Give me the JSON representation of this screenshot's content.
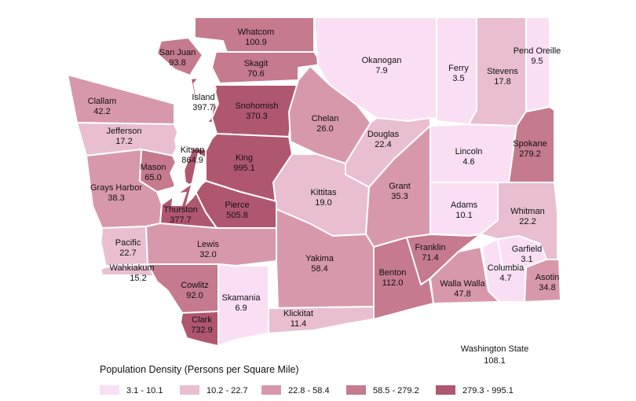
{
  "colors": {
    "c1": "#fadff4",
    "c2": "#e9bed1",
    "c3": "#d898ab",
    "c4": "#c57a8d",
    "c5": "#b05770",
    "border": "#ffffff"
  },
  "counties": {
    "whatcom": {
      "name": "Whatcom",
      "density": "100.9",
      "class": "c4"
    },
    "sanjuan": {
      "name": "San Juan",
      "density": "93.8",
      "class": "c4"
    },
    "skagit": {
      "name": "Skagit",
      "density": "70.6",
      "class": "c4"
    },
    "okanogan": {
      "name": "Okanogan",
      "density": "7.9",
      "class": "c1"
    },
    "ferry": {
      "name": "Ferry",
      "density": "3.5",
      "class": "c1"
    },
    "stevens": {
      "name": "Stevens",
      "density": "17.8",
      "class": "c2"
    },
    "pendoreille": {
      "name": "Pend Oreille",
      "density": "9.5",
      "class": "c1"
    },
    "clallam": {
      "name": "Clallam",
      "density": "42.2",
      "class": "c3"
    },
    "island": {
      "name": "Island",
      "density": "397.7",
      "class": "c5"
    },
    "snohomish": {
      "name": "Snohomish",
      "density": "370.3",
      "class": "c5"
    },
    "chelan": {
      "name": "Chelan",
      "density": "26.0",
      "class": "c3"
    },
    "jefferson": {
      "name": "Jefferson",
      "density": "17.2",
      "class": "c2"
    },
    "douglas": {
      "name": "Douglas",
      "density": "22.4",
      "class": "c2"
    },
    "kitsap": {
      "name": "Kitsap",
      "density": "864.9",
      "class": "c5"
    },
    "lincoln": {
      "name": "Lincoln",
      "density": "4.6",
      "class": "c1"
    },
    "spokane": {
      "name": "Spokane",
      "density": "279.2",
      "class": "c4"
    },
    "mason": {
      "name": "Mason",
      "density": "65.0",
      "class": "c4"
    },
    "king": {
      "name": "King",
      "density": "995.1",
      "class": "c5"
    },
    "graysharbor": {
      "name": "Grays Harbor",
      "density": "38.3",
      "class": "c3"
    },
    "kittitas": {
      "name": "Kittitas",
      "density": "19.0",
      "class": "c2"
    },
    "grant": {
      "name": "Grant",
      "density": "35.3",
      "class": "c3"
    },
    "adams": {
      "name": "Adams",
      "density": "10.1",
      "class": "c1"
    },
    "whitman": {
      "name": "Whitman",
      "density": "22.2",
      "class": "c2"
    },
    "thurston": {
      "name": "Thurston",
      "density": "377.7",
      "class": "c5"
    },
    "pierce": {
      "name": "Pierce",
      "density": "505.8",
      "class": "c5"
    },
    "pacific": {
      "name": "Pacific",
      "density": "22.7",
      "class": "c2"
    },
    "lewis": {
      "name": "Lewis",
      "density": "32.0",
      "class": "c3"
    },
    "franklin": {
      "name": "Franklin",
      "density": "71.4",
      "class": "c4"
    },
    "garfield": {
      "name": "Garfield",
      "density": "3.1",
      "class": "c1"
    },
    "wahkiakum": {
      "name": "Wahkiakum",
      "density": "15.2",
      "class": "c2"
    },
    "yakima": {
      "name": "Yakima",
      "density": "58.4",
      "class": "c3"
    },
    "benton": {
      "name": "Benton",
      "density": "112.0",
      "class": "c4"
    },
    "columbia": {
      "name": "Columbia",
      "density": "4.7",
      "class": "c1"
    },
    "cowlitz": {
      "name": "Cowlitz",
      "density": "92.0",
      "class": "c4"
    },
    "wallawalla": {
      "name": "Walla Walla",
      "density": "47.8",
      "class": "c3"
    },
    "asotin": {
      "name": "Asotin",
      "density": "34.8",
      "class": "c3"
    },
    "skamania": {
      "name": "Skamania",
      "density": "6.9",
      "class": "c1"
    },
    "clark": {
      "name": "Clark",
      "density": "732.9",
      "class": "c5"
    },
    "klickitat": {
      "name": "Klickitat",
      "density": "11.4",
      "class": "c2"
    }
  },
  "state": {
    "name": "Washington State",
    "density": "108.1"
  },
  "legend": {
    "title": "Population Density (Persons per Square Mile)",
    "items": [
      {
        "label": "3.1 - 10.1",
        "class": "c1"
      },
      {
        "label": "10.2 - 22.7",
        "class": "c2"
      },
      {
        "label": "22.8 - 58.4",
        "class": "c3"
      },
      {
        "label": "58.5 - 279.2",
        "class": "c4"
      },
      {
        "label": "279.3 - 995.1",
        "class": "c5"
      }
    ]
  }
}
